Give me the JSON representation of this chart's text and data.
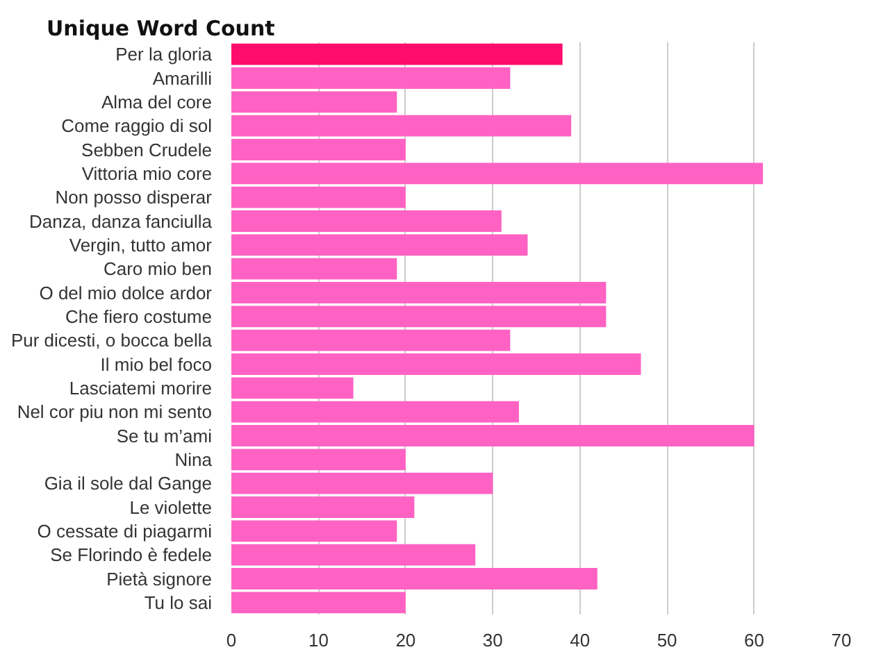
{
  "chart_data": {
    "type": "bar",
    "orientation": "horizontal",
    "title": "Unique Word Count",
    "categories": [
      "Per la gloria",
      "Amarilli",
      "Alma del core",
      "Come raggio di sol",
      "Sebben Crudele",
      "Vittoria mio core",
      "Non posso disperar",
      "Danza, danza fanciulla",
      "Vergin, tutto amor",
      "Caro mio ben",
      "O del mio dolce ardor",
      "Che fiero costume",
      "Pur dicesti, o bocca bella",
      "Il mio bel foco",
      "Lasciatemi morire",
      "Nel cor piu non mi sento",
      "Se tu m’ami",
      "Nina",
      "Gia il sole dal Gange",
      "Le violette",
      "O cessate di piagarmi",
      "Se Florindo è fedele",
      "Pietà signore",
      "Tu lo sai"
    ],
    "values": [
      38,
      32,
      19,
      39,
      20,
      61,
      20,
      31,
      34,
      19,
      43,
      43,
      32,
      47,
      14,
      33,
      60,
      20,
      30,
      21,
      19,
      28,
      42,
      20
    ],
    "colors": [
      "#ff0d6c",
      "#ff62c3",
      "#ff62c3",
      "#ff62c3",
      "#ff62c3",
      "#ff62c3",
      "#ff62c3",
      "#ff62c3",
      "#ff62c3",
      "#ff62c3",
      "#ff62c3",
      "#ff62c3",
      "#ff62c3",
      "#ff62c3",
      "#ff62c3",
      "#ff62c3",
      "#ff62c3",
      "#ff62c3",
      "#ff62c3",
      "#ff62c3",
      "#ff62c3",
      "#ff62c3",
      "#ff62c3",
      "#ff62c3"
    ],
    "xlim": [
      0,
      70
    ],
    "xticks": [
      0,
      10,
      20,
      30,
      40,
      50,
      60,
      70
    ],
    "grid": "x"
  }
}
